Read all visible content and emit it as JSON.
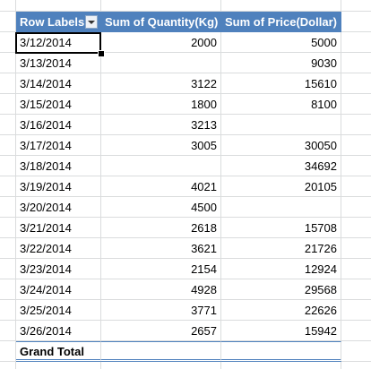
{
  "table": {
    "headers": [
      "Row Labels",
      "Sum of Quantity(Kg)",
      "Sum of Price(Dollar)"
    ],
    "rows": [
      [
        "3/12/2014",
        2000,
        5000
      ],
      [
        "3/13/2014",
        null,
        9030
      ],
      [
        "3/14/2014",
        3122,
        15610
      ],
      [
        "3/15/2014",
        1800,
        8100
      ],
      [
        "3/16/2014",
        3213,
        null
      ],
      [
        "3/17/2014",
        3005,
        30050
      ],
      [
        "3/18/2014",
        null,
        34692
      ],
      [
        "3/19/2014",
        4021,
        20105
      ],
      [
        "3/20/2014",
        4500,
        null
      ],
      [
        "3/21/2014",
        2618,
        15708
      ],
      [
        "3/22/2014",
        3621,
        21726
      ],
      [
        "3/23/2014",
        2154,
        12924
      ],
      [
        "3/24/2014",
        4928,
        29568
      ],
      [
        "3/25/2014",
        3771,
        22626
      ],
      [
        "3/26/2014",
        2657,
        15942
      ]
    ],
    "footer": [
      "Grand Total"
    ]
  }
}
